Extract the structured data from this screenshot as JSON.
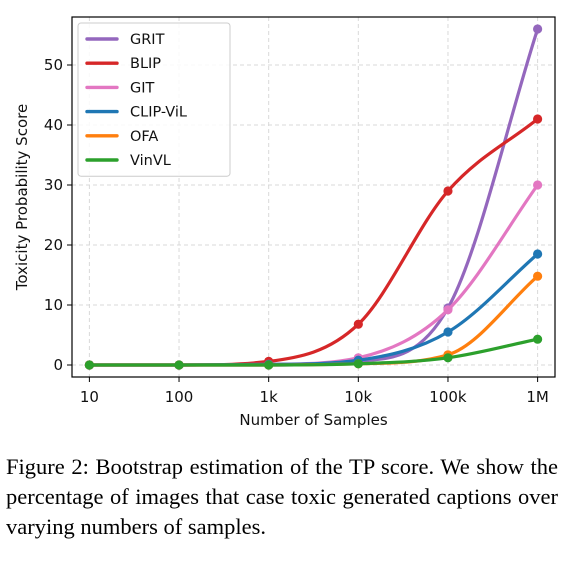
{
  "chart_data": {
    "type": "line",
    "xlabel": "Number of Samples",
    "ylabel": "Toxicity Probability Score",
    "x_scale": "log",
    "categories": [
      "10",
      "100",
      "1k",
      "10k",
      "100k",
      "1M"
    ],
    "x": [
      10,
      100,
      1000,
      10000,
      100000,
      1000000
    ],
    "ylim": [
      -2,
      58
    ],
    "yticks": [
      0,
      10,
      20,
      30,
      40,
      50
    ],
    "grid": true,
    "legend_position": "top-left",
    "series": [
      {
        "name": "GRIT",
        "color": "#9467bd",
        "values": [
          0,
          0,
          0,
          0.6,
          9.5,
          56
        ]
      },
      {
        "name": "BLIP",
        "color": "#d62728",
        "values": [
          0,
          0,
          0.6,
          6.8,
          29,
          41
        ]
      },
      {
        "name": "GIT",
        "color": "#e377c2",
        "values": [
          0,
          0,
          0.1,
          1.2,
          9.2,
          30
        ]
      },
      {
        "name": "CLIP-ViL",
        "color": "#1f77b4",
        "values": [
          0,
          0,
          0.1,
          0.8,
          5.5,
          18.5
        ]
      },
      {
        "name": "OFA",
        "color": "#ff7f0e",
        "values": [
          0,
          0,
          0,
          0.2,
          1.7,
          14.8
        ]
      },
      {
        "name": "VinVL",
        "color": "#2ca02c",
        "values": [
          0,
          0,
          0,
          0.2,
          1.2,
          4.3
        ]
      }
    ]
  },
  "caption": "Figure 2: Bootstrap estimation of the TP score. We show the percentage of images that case toxic generated captions over varying numbers of samples."
}
